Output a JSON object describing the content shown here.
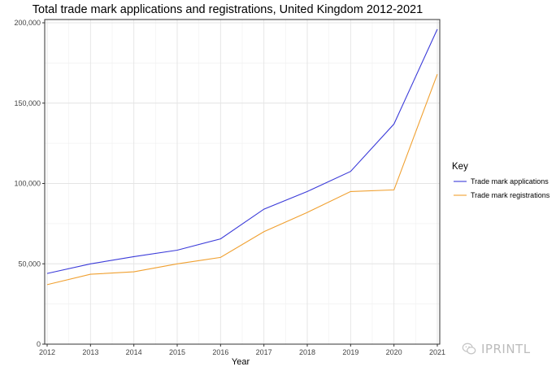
{
  "chart_data": {
    "type": "line",
    "title": "Total trade mark applications and registrations, United Kingdom 2012-2021",
    "xlabel": "Year",
    "ylabel": "",
    "x": [
      2012,
      2013,
      2014,
      2015,
      2016,
      2017,
      2018,
      2019,
      2020,
      2021
    ],
    "ylim": [
      0,
      200000
    ],
    "yticks": [
      0,
      50000,
      100000,
      150000,
      200000
    ],
    "ytick_labels": [
      "0",
      "50,000",
      "100,000",
      "150,000",
      "200,000"
    ],
    "grid": true,
    "legend": {
      "title": "Key",
      "position": "right"
    },
    "series": [
      {
        "name": "Trade mark applications",
        "color": "#3b3bd9",
        "values": [
          44000,
          50000,
          54500,
          58500,
          65500,
          84000,
          95000,
          107500,
          137000,
          196000
        ]
      },
      {
        "name": "Trade mark registrations",
        "color": "#f0a030",
        "values": [
          37000,
          43500,
          45000,
          50000,
          54000,
          70000,
          82000,
          95000,
          96000,
          168000
        ]
      }
    ]
  },
  "watermark": {
    "text": "IPRINTL"
  }
}
